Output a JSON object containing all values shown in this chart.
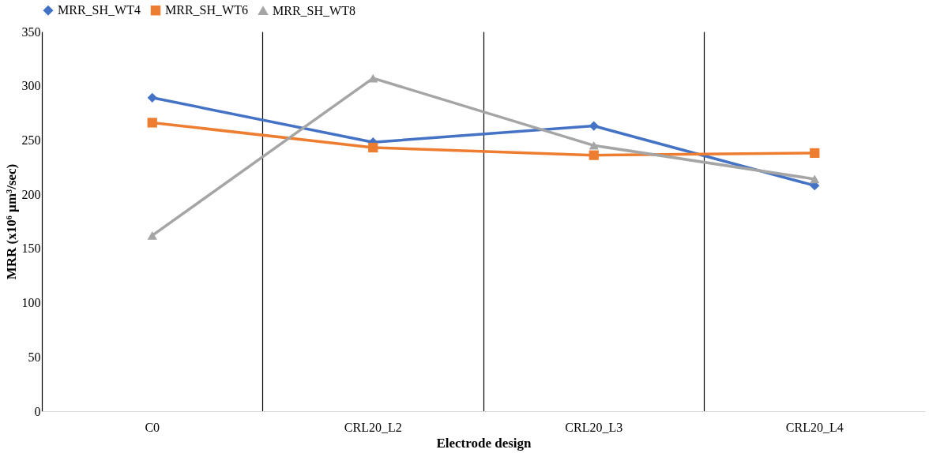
{
  "chart_data": {
    "type": "line",
    "xlabel": "Electrode design",
    "ylabel": "MRR (x10⁶ µm³/sec)",
    "categories": [
      "C0",
      "CRL20_L2",
      "CRL20_L3",
      "CRL20_L4"
    ],
    "ylim": [
      0,
      350
    ],
    "yticks": [
      0,
      50,
      100,
      150,
      200,
      250,
      300,
      350
    ],
    "grid": "x",
    "legend": "top",
    "line_style": "solid",
    "series": [
      {
        "name": "MRR_SH_WT4",
        "color": "#4472c4",
        "marker": "diamond",
        "values": [
          289,
          248,
          263,
          208
        ]
      },
      {
        "name": "MRR_SH_WT6",
        "color": "#ed7d31",
        "marker": "square",
        "values": [
          266,
          243,
          236,
          238
        ]
      },
      {
        "name": "MRR_SH_WT8",
        "color": "#a5a5a5",
        "marker": "triangle",
        "values": [
          162,
          307,
          245,
          214
        ]
      }
    ]
  }
}
